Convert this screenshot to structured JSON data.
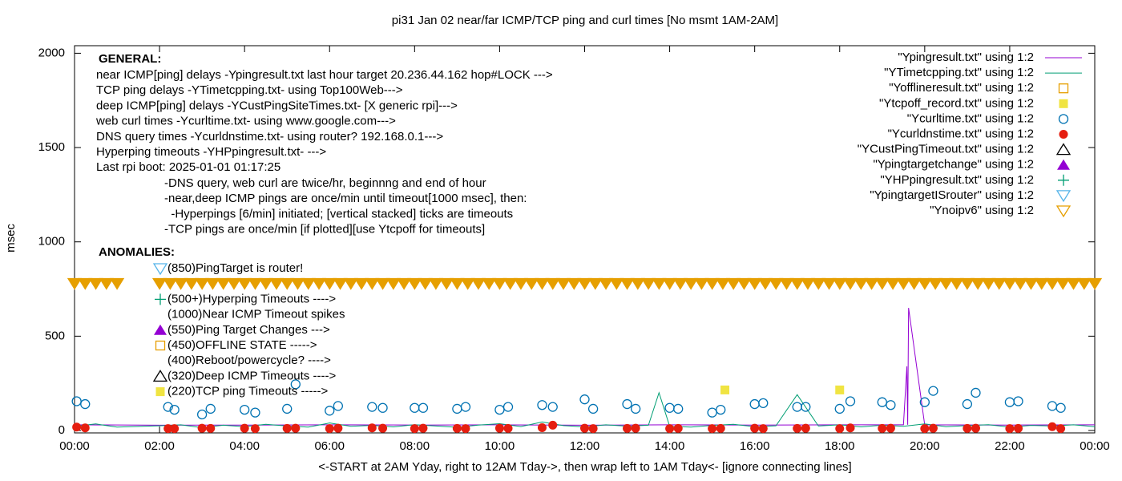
{
  "chart_data": {
    "type": "scatter",
    "title": "pi31 Jan 02  near/far ICMP/TCP ping and curl times [No msmt 1AM-2AM]",
    "x_label": "<-START at 2AM Yday, right to 12AM Tday->, then wrap left to 1AM Tday<- [ignore connecting lines]",
    "y_label": "msec",
    "xlim": [
      0,
      24
    ],
    "ylim": [
      0,
      2040
    ],
    "xticks": [
      {
        "value": 0,
        "label": "00:00"
      },
      {
        "value": 2,
        "label": "02:00"
      },
      {
        "value": 4,
        "label": "04:00"
      },
      {
        "value": 6,
        "label": "06:00"
      },
      {
        "value": 8,
        "label": "08:00"
      },
      {
        "value": 10,
        "label": "10:00"
      },
      {
        "value": 12,
        "label": "12:00"
      },
      {
        "value": 14,
        "label": "14:00"
      },
      {
        "value": 16,
        "label": "16:00"
      },
      {
        "value": 18,
        "label": "18:00"
      },
      {
        "value": 20,
        "label": "20:00"
      },
      {
        "value": 22,
        "label": "22:00"
      },
      {
        "value": 24,
        "label": "00:00"
      }
    ],
    "yticks": [
      0,
      500,
      1000,
      1500,
      2000
    ],
    "annotations": {
      "general_title": "GENERAL:",
      "general": [
        "near ICMP[ping] delays -Ypingresult.txt last hour target 20.236.44.162 hop#LOCK --->",
        "TCP ping delays -YTimetcpping.txt- using Top100Web--->",
        "deep ICMP[ping] delays -YCustPingSiteTimes.txt- [X generic rpi]--->",
        "web curl times -Ycurltime.txt- using www.google.com--->",
        "DNS query times -Ycurldnstime.txt- using router? 192.168.0.1--->",
        "Hyperping timeouts -YHPpingresult.txt- --->",
        "Last rpi boot: 2025-01-01 01:17:25"
      ],
      "notes": [
        "-DNS query, web curl are twice/hr, beginnng and end of hour",
        "-near,deep ICMP pings are once/min until timeout[1000 msec], then:",
        "  -Hyperpings [6/min] initiated; [vertical stacked] ticks are timeouts",
        "-TCP pings are once/min [if plotted][use Ytcpoff for timeouts]"
      ],
      "anomalies_title": "ANOMALIES:",
      "anomalies": [
        {
          "text": "(850)PingTarget is router!",
          "marker": "open-triangle-down",
          "color": "#56b4e9"
        },
        {
          "text": "(500+)Hyperping Timeouts ---->",
          "marker": "plus",
          "color": "#009e73"
        },
        {
          "text": "(1000)Near ICMP Timeout spikes"
        },
        {
          "text": "(550)Ping Target Changes --->",
          "marker": "filled-triangle-up",
          "color": "#9400d3"
        },
        {
          "text": "(450)OFFLINE STATE ----->",
          "marker": "open-square",
          "color": "#e69f00"
        },
        {
          "text": "(400)Reboot/powercycle? ---->"
        },
        {
          "text": "(320)Deep ICMP Timeouts ---->",
          "marker": "open-triangle-up",
          "color": "#000000"
        },
        {
          "text": "(220)TCP ping Timeouts ----->",
          "marker": "filled-square",
          "color": "#f0e442"
        }
      ]
    },
    "series": [
      {
        "name": "\"Ypingresult.txt\" using 1:2",
        "color": "#9400d3",
        "style": "line",
        "x": [
          0,
          2,
          4,
          6,
          8,
          10,
          12,
          14,
          16,
          18,
          19.5,
          19.58,
          19.6,
          19.62,
          20,
          22,
          24
        ],
        "values": [
          30,
          28,
          29,
          30,
          29,
          30,
          28,
          30,
          29,
          30,
          30,
          340,
          30,
          650,
          30,
          29,
          30
        ]
      },
      {
        "name": "\"YTimetcpping.txt\" using 1:2",
        "color": "#009e73",
        "style": "line",
        "x": [
          0,
          0.5,
          1,
          2,
          2.5,
          3,
          3.5,
          4,
          4.5,
          5,
          5.5,
          6,
          6.5,
          7,
          7.5,
          8,
          8.5,
          9,
          9.5,
          10,
          10.5,
          11,
          11.5,
          12,
          12.5,
          13,
          13.5,
          13.75,
          14,
          14.5,
          15,
          15.5,
          16,
          16.5,
          17,
          17.5,
          18,
          18.5,
          19,
          19.5,
          20,
          20.5,
          21,
          21.5,
          22,
          22.5,
          23,
          23.5,
          24
        ],
        "values": [
          22,
          35,
          18,
          25,
          30,
          15,
          28,
          20,
          33,
          24,
          18,
          40,
          22,
          27,
          19,
          31,
          24,
          17,
          29,
          36,
          21,
          45,
          26,
          19,
          30,
          23,
          28,
          200,
          22,
          18,
          27,
          33,
          20,
          25,
          190,
          24,
          30,
          19,
          28,
          22,
          35,
          20,
          26,
          31,
          18,
          27,
          24,
          30,
          20
        ]
      },
      {
        "name": "\"Yofflineresult.txt\" using 1:2",
        "color": "#e69f00",
        "style": "open-square",
        "x": [],
        "values": []
      },
      {
        "name": "\"Ytcpoff_record.txt\" using 1:2",
        "color": "#f0e442",
        "style": "filled-square",
        "x": [
          15.3,
          18.0
        ],
        "values": [
          215,
          215
        ]
      },
      {
        "name": "\"Ycurltime.txt\" using 1:2",
        "color": "#0072b2",
        "style": "open-circle",
        "x": [
          0.05,
          0.25,
          2.2,
          2.35,
          3.0,
          3.2,
          4.0,
          4.25,
          5.0,
          5.2,
          6.0,
          6.2,
          7.0,
          7.25,
          8.0,
          8.2,
          9.0,
          9.2,
          10.0,
          10.2,
          11.0,
          11.25,
          12.0,
          12.2,
          13.0,
          13.2,
          14.0,
          14.2,
          15.0,
          15.2,
          16.0,
          16.2,
          17.0,
          17.2,
          18.0,
          18.25,
          19.0,
          19.2,
          20.0,
          20.2,
          21.0,
          21.2,
          22.0,
          22.2,
          23.0,
          23.2
        ],
        "values": [
          155,
          140,
          125,
          110,
          85,
          115,
          110,
          95,
          115,
          245,
          105,
          130,
          125,
          120,
          120,
          120,
          115,
          125,
          110,
          125,
          135,
          125,
          165,
          115,
          140,
          115,
          120,
          115,
          95,
          110,
          140,
          145,
          125,
          125,
          115,
          155,
          150,
          135,
          150,
          210,
          140,
          200,
          150,
          155,
          130,
          120
        ]
      },
      {
        "name": "\"Ycurldnstime.txt\" using 1:2",
        "color": "#e51e10",
        "style": "filled-circle",
        "x": [
          0.05,
          0.25,
          2.2,
          2.35,
          3.0,
          3.2,
          4.0,
          4.25,
          5.0,
          5.2,
          6.0,
          6.2,
          7.0,
          7.25,
          8.0,
          8.2,
          9.0,
          9.2,
          10.0,
          10.2,
          11.0,
          11.25,
          12.0,
          12.2,
          13.0,
          13.2,
          14.0,
          14.2,
          15.0,
          15.2,
          16.0,
          16.2,
          17.0,
          17.2,
          18.0,
          18.25,
          19.0,
          19.2,
          20.0,
          20.2,
          21.0,
          21.2,
          22.0,
          22.2,
          23.0,
          23.2
        ],
        "values": [
          18,
          14,
          10,
          10,
          12,
          11,
          12,
          10,
          11,
          12,
          10,
          12,
          14,
          12,
          10,
          12,
          11,
          10,
          12,
          11,
          15,
          28,
          12,
          10,
          11,
          12,
          10,
          11,
          10,
          11,
          12,
          10,
          11,
          12,
          10,
          14,
          11,
          12,
          10,
          12,
          11,
          12,
          10,
          11,
          20,
          10
        ]
      },
      {
        "name": "\"YCustPingTimeout.txt\" using 1:2",
        "color": "#000000",
        "style": "open-triangle-up",
        "x": [],
        "values": []
      },
      {
        "name": "\"Ypingtargetchange\" using 1:2",
        "color": "#9400d3",
        "style": "filled-triangle-up",
        "x": [],
        "values": []
      },
      {
        "name": "\"YHPpingresult.txt\" using 1:2",
        "color": "#009e73",
        "style": "plus",
        "x": [],
        "values": []
      },
      {
        "name": "\"YpingtargetISrouter\" using 1:2",
        "color": "#56b4e9",
        "style": "open-triangle-down",
        "x": [],
        "values": []
      },
      {
        "name": "\"Ynoipv6\" using 1:2",
        "color": "#e69f00",
        "style": "open-triangle-down",
        "x": [
          0,
          0.25,
          0.5,
          0.75,
          1,
          2,
          2.25,
          2.5,
          2.75,
          3,
          3.25,
          3.5,
          3.75,
          4,
          4.25,
          4.5,
          4.75,
          5,
          5.25,
          5.5,
          5.75,
          6,
          6.25,
          6.5,
          6.75,
          7,
          7.25,
          7.5,
          7.75,
          8,
          8.25,
          8.5,
          8.75,
          9,
          9.25,
          9.5,
          9.75,
          10,
          10.25,
          10.5,
          10.75,
          11,
          11.25,
          11.5,
          11.75,
          12,
          12.25,
          12.5,
          12.75,
          13,
          13.25,
          13.5,
          13.75,
          14,
          14.25,
          14.5,
          14.75,
          15,
          15.25,
          15.5,
          15.75,
          16,
          16.25,
          16.5,
          16.75,
          17,
          17.25,
          17.5,
          17.75,
          18,
          18.25,
          18.5,
          18.75,
          19,
          19.25,
          19.5,
          19.75,
          20,
          20.25,
          20.5,
          20.75,
          21,
          21.25,
          21.5,
          21.75,
          22,
          22.25,
          22.5,
          22.75,
          23,
          23.25,
          23.5,
          23.75,
          24
        ],
        "values": [
          780,
          780,
          780,
          780,
          780,
          780,
          780,
          780,
          780,
          780,
          780,
          780,
          780,
          780,
          780,
          780,
          780,
          780,
          780,
          780,
          780,
          780,
          780,
          780,
          780,
          780,
          780,
          780,
          780,
          780,
          780,
          780,
          780,
          780,
          780,
          780,
          780,
          780,
          780,
          780,
          780,
          780,
          780,
          780,
          780,
          780,
          780,
          780,
          780,
          780,
          780,
          780,
          780,
          780,
          780,
          780,
          780,
          780,
          780,
          780,
          780,
          780,
          780,
          780,
          780,
          780,
          780,
          780,
          780,
          780,
          780,
          780,
          780,
          780,
          780,
          780,
          780,
          780,
          780,
          780,
          780,
          780,
          780,
          780,
          780,
          780,
          780,
          780,
          780,
          780,
          780,
          780,
          780,
          780
        ]
      }
    ]
  }
}
